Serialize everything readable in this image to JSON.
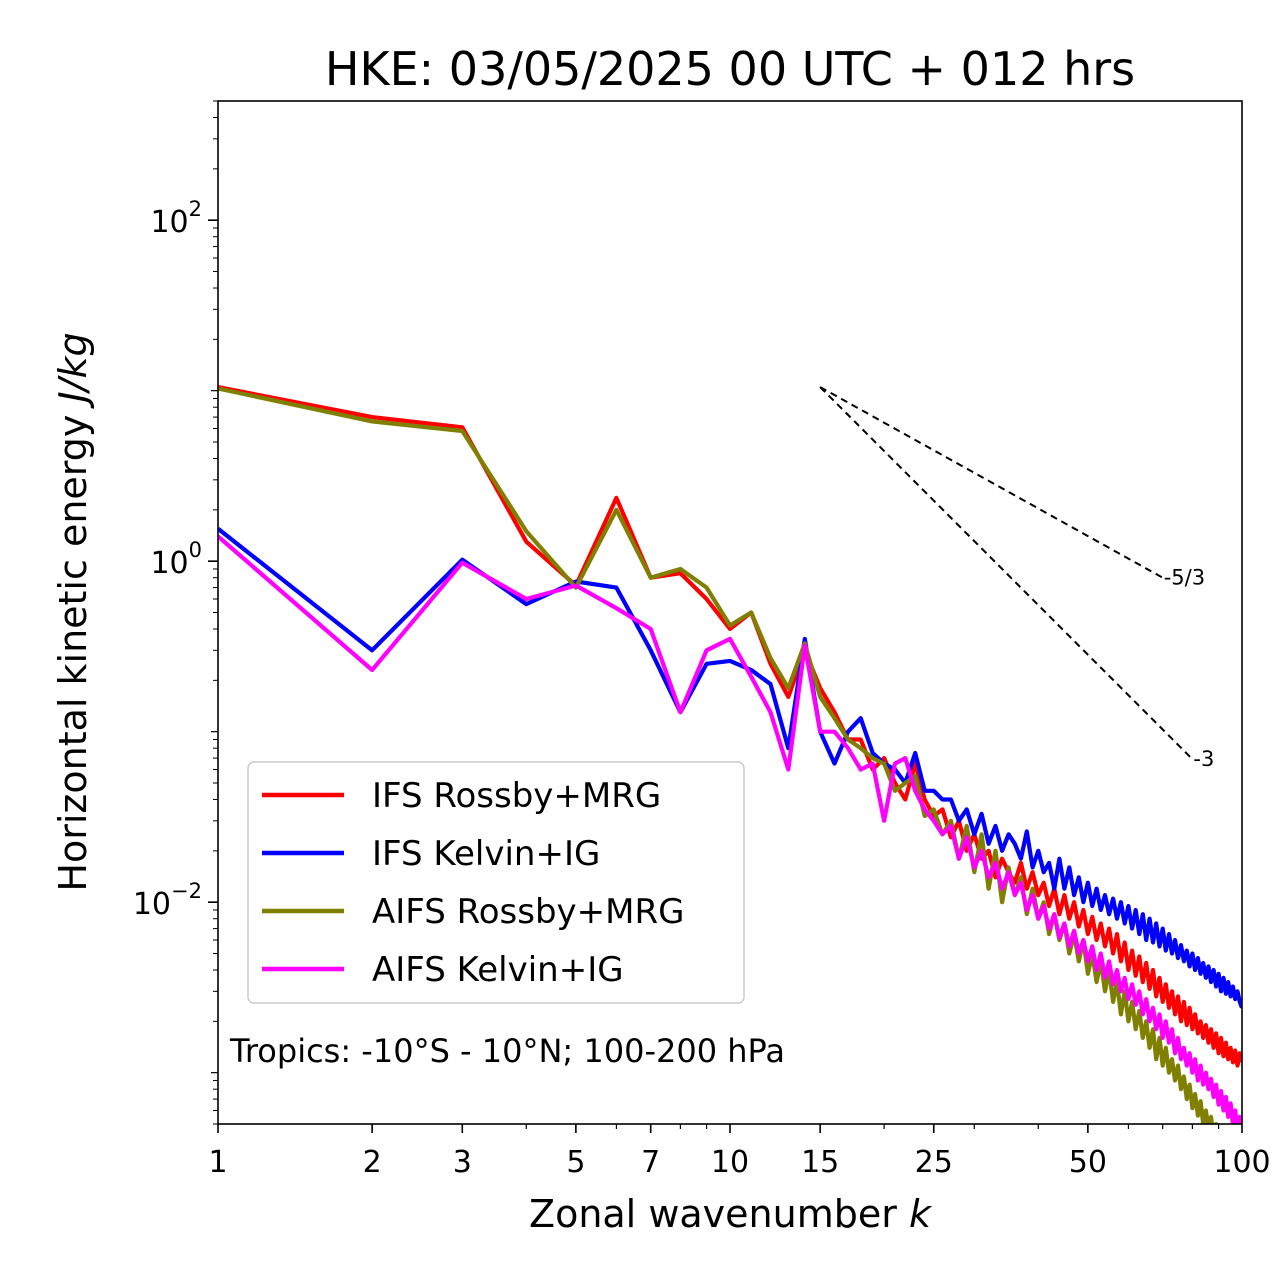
{
  "chart_data": {
    "type": "line",
    "title": "HKE: 03/05/2025 00 UTC + 012 hrs",
    "xlabel": "Zonal wavenumber",
    "xlabel_var": "k",
    "ylabel": "Horizontal kinetic energy",
    "ylabel_unit": "J/kg",
    "xscale": "log",
    "yscale": "log",
    "xlim": [
      1,
      100
    ],
    "ylim": [
      0.0005,
      500
    ],
    "x_ticks": [
      1,
      2,
      3,
      5,
      7,
      10,
      15,
      25,
      50,
      100
    ],
    "x_tick_labels": [
      "1",
      "2",
      "3",
      "5",
      "7",
      "10",
      "15",
      "25",
      "50",
      "100"
    ],
    "y_ticks": [
      0.01,
      1,
      100
    ],
    "y_tick_labels": [
      {
        "base": "10",
        "exp": "−2"
      },
      {
        "base": "10",
        "exp": "0"
      },
      {
        "base": "10",
        "exp": "2"
      }
    ],
    "annotation": "Tropics: -10°S - 10°N; 100-200 hPa",
    "legend_position": "lower-left",
    "reference_lines": [
      {
        "label": "-5/3",
        "slope": -1.6667,
        "x_start": 15,
        "y_start": 10.5,
        "x_end": 70,
        "y_end": 0.8
      },
      {
        "label": "-3",
        "slope": -3,
        "x_start": 15,
        "y_start": 10.5,
        "x_end": 80,
        "y_end": 0.069
      }
    ],
    "series": [
      {
        "name": "IFS Rossby+MRG",
        "color": "#ff0000",
        "x": [
          1,
          2,
          3,
          4,
          5,
          6,
          7,
          8,
          9,
          10,
          11,
          12,
          13,
          14,
          15,
          16,
          17,
          18,
          19,
          20,
          21,
          22,
          23,
          24,
          25,
          26,
          27,
          28,
          29,
          30,
          31,
          32,
          33,
          34,
          35,
          36,
          37,
          38,
          39,
          40,
          41,
          42,
          43,
          44,
          45,
          46,
          47,
          48,
          49,
          50,
          51,
          52,
          53,
          54,
          55,
          56,
          57,
          58,
          59,
          60,
          61,
          62,
          63,
          64,
          65,
          66,
          67,
          68,
          69,
          70,
          71,
          72,
          73,
          74,
          75,
          76,
          77,
          78,
          79,
          80,
          81,
          82,
          83,
          84,
          85,
          86,
          87,
          88,
          89,
          90,
          91,
          92,
          93,
          94,
          95,
          96,
          97,
          98,
          99,
          100
        ],
        "y": [
          10.5,
          7.0,
          6.1,
          1.3,
          0.72,
          2.35,
          0.8,
          0.85,
          0.6,
          0.4,
          0.5,
          0.25,
          0.16,
          0.3,
          0.18,
          0.13,
          0.09,
          0.09,
          0.06,
          0.07,
          0.05,
          0.04,
          0.065,
          0.04,
          0.032,
          0.035,
          0.024,
          0.03,
          0.02,
          0.025,
          0.018,
          0.02,
          0.014,
          0.018,
          0.015,
          0.013,
          0.017,
          0.012,
          0.015,
          0.011,
          0.013,
          0.0095,
          0.012,
          0.0085,
          0.011,
          0.008,
          0.01,
          0.0072,
          0.009,
          0.0065,
          0.0082,
          0.006,
          0.0075,
          0.0055,
          0.007,
          0.005,
          0.0065,
          0.0045,
          0.0058,
          0.004,
          0.0052,
          0.0037,
          0.0048,
          0.0034,
          0.0044,
          0.0031,
          0.004,
          0.0028,
          0.0036,
          0.0026,
          0.0033,
          0.0024,
          0.003,
          0.0022,
          0.0028,
          0.002,
          0.0026,
          0.0019,
          0.0024,
          0.0018,
          0.0022,
          0.0017,
          0.002,
          0.0016,
          0.0019,
          0.0015,
          0.0018,
          0.0014,
          0.0017,
          0.0013,
          0.0016,
          0.00125,
          0.0015,
          0.0012,
          0.0014,
          0.00115,
          0.00135,
          0.0011,
          0.0013,
          0.00115
        ]
      },
      {
        "name": "IFS Kelvin+IG",
        "color": "#0000ff",
        "x": [
          1,
          2,
          3,
          4,
          5,
          6,
          7,
          8,
          9,
          10,
          11,
          12,
          13,
          14,
          15,
          16,
          17,
          18,
          19,
          20,
          21,
          22,
          23,
          24,
          25,
          26,
          27,
          28,
          29,
          30,
          31,
          32,
          33,
          34,
          35,
          36,
          37,
          38,
          39,
          40,
          41,
          42,
          43,
          44,
          45,
          46,
          47,
          48,
          49,
          50,
          51,
          52,
          53,
          54,
          55,
          56,
          57,
          58,
          59,
          60,
          61,
          62,
          63,
          64,
          65,
          66,
          67,
          68,
          69,
          70,
          71,
          72,
          73,
          74,
          75,
          76,
          77,
          78,
          79,
          80,
          81,
          82,
          83,
          84,
          85,
          86,
          87,
          88,
          89,
          90,
          91,
          92,
          93,
          94,
          95,
          96,
          97,
          98,
          99,
          100
        ],
        "y": [
          1.55,
          0.3,
          1.02,
          0.56,
          0.76,
          0.7,
          0.3,
          0.13,
          0.25,
          0.26,
          0.23,
          0.19,
          0.08,
          0.35,
          0.1,
          0.065,
          0.1,
          0.12,
          0.075,
          0.065,
          0.06,
          0.05,
          0.075,
          0.045,
          0.045,
          0.04,
          0.04,
          0.03,
          0.035,
          0.025,
          0.033,
          0.022,
          0.028,
          0.02,
          0.025,
          0.022,
          0.018,
          0.026,
          0.016,
          0.02,
          0.015,
          0.017,
          0.012,
          0.018,
          0.012,
          0.016,
          0.011,
          0.014,
          0.01,
          0.013,
          0.0095,
          0.012,
          0.009,
          0.011,
          0.0085,
          0.0105,
          0.008,
          0.01,
          0.0075,
          0.0095,
          0.007,
          0.009,
          0.0065,
          0.0085,
          0.006,
          0.008,
          0.0058,
          0.0075,
          0.0055,
          0.007,
          0.0052,
          0.0065,
          0.005,
          0.006,
          0.0047,
          0.0056,
          0.0045,
          0.0052,
          0.0042,
          0.005,
          0.004,
          0.0047,
          0.0038,
          0.0044,
          0.0036,
          0.0042,
          0.0034,
          0.004,
          0.0032,
          0.0038,
          0.003,
          0.0036,
          0.0029,
          0.0034,
          0.0028,
          0.0032,
          0.0027,
          0.003,
          0.0026,
          0.0024
        ]
      },
      {
        "name": "AIFS Rossby+MRG",
        "color": "#808000",
        "x": [
          1,
          2,
          3,
          4,
          5,
          6,
          7,
          8,
          9,
          10,
          11,
          12,
          13,
          14,
          15,
          16,
          17,
          18,
          19,
          20,
          21,
          22,
          23,
          24,
          25,
          26,
          27,
          28,
          29,
          30,
          31,
          32,
          33,
          34,
          35,
          36,
          37,
          38,
          39,
          40,
          41,
          42,
          43,
          44,
          45,
          46,
          47,
          48,
          49,
          50,
          51,
          52,
          53,
          54,
          55,
          56,
          57,
          58,
          59,
          60,
          61,
          62,
          63,
          64,
          65,
          66,
          67,
          68,
          69,
          70,
          71,
          72,
          73,
          74,
          75,
          76,
          77,
          78,
          79,
          80,
          81,
          82,
          83,
          84,
          85,
          86,
          87,
          88,
          89,
          90,
          91,
          92,
          93,
          94,
          95,
          96,
          97,
          98,
          99,
          100
        ],
        "y": [
          10.3,
          6.6,
          5.8,
          1.5,
          0.7,
          2.0,
          0.8,
          0.9,
          0.7,
          0.42,
          0.5,
          0.27,
          0.18,
          0.33,
          0.16,
          0.12,
          0.09,
          0.08,
          0.07,
          0.065,
          0.045,
          0.05,
          0.055,
          0.032,
          0.035,
          0.025,
          0.03,
          0.018,
          0.028,
          0.015,
          0.025,
          0.012,
          0.02,
          0.01,
          0.016,
          0.011,
          0.014,
          0.0085,
          0.012,
          0.008,
          0.01,
          0.0065,
          0.0085,
          0.006,
          0.0075,
          0.005,
          0.0065,
          0.0045,
          0.006,
          0.0038,
          0.005,
          0.0034,
          0.0045,
          0.003,
          0.004,
          0.0026,
          0.0034,
          0.0022,
          0.003,
          0.002,
          0.0026,
          0.0018,
          0.0023,
          0.0016,
          0.002,
          0.0014,
          0.0018,
          0.0012,
          0.0016,
          0.0011,
          0.0014,
          0.001,
          0.0012,
          0.0009,
          0.0011,
          0.0008,
          0.00095,
          0.0007,
          0.00085,
          0.00062,
          0.00075,
          0.00056,
          0.00068,
          0.0005,
          0.0006,
          0.00046,
          0.00055,
          0.00042,
          0.0005,
          0.00038,
          0.00046,
          0.00035,
          0.00042,
          0.00032,
          0.00038,
          0.0003,
          0.00035,
          0.00028,
          0.00032,
          0.00026
        ]
      },
      {
        "name": "AIFS Kelvin+IG",
        "color": "#ff00ff",
        "x": [
          1,
          2,
          3,
          4,
          5,
          6,
          7,
          8,
          9,
          10,
          11,
          12,
          13,
          14,
          15,
          16,
          17,
          18,
          19,
          20,
          21,
          22,
          23,
          24,
          25,
          26,
          27,
          28,
          29,
          30,
          31,
          32,
          33,
          34,
          35,
          36,
          37,
          38,
          39,
          40,
          41,
          42,
          43,
          44,
          45,
          46,
          47,
          48,
          49,
          50,
          51,
          52,
          53,
          54,
          55,
          56,
          57,
          58,
          59,
          60,
          61,
          62,
          63,
          64,
          65,
          66,
          67,
          68,
          69,
          70,
          71,
          72,
          73,
          74,
          75,
          76,
          77,
          78,
          79,
          80,
          81,
          82,
          83,
          84,
          85,
          86,
          87,
          88,
          89,
          90,
          91,
          92,
          93,
          94,
          95,
          96,
          97,
          98,
          99,
          100
        ],
        "y": [
          1.4,
          0.23,
          0.98,
          0.6,
          0.72,
          0.53,
          0.4,
          0.13,
          0.3,
          0.35,
          0.21,
          0.13,
          0.06,
          0.32,
          0.1,
          0.1,
          0.08,
          0.06,
          0.065,
          0.03,
          0.065,
          0.07,
          0.045,
          0.035,
          0.03,
          0.025,
          0.028,
          0.018,
          0.024,
          0.016,
          0.02,
          0.014,
          0.017,
          0.012,
          0.015,
          0.011,
          0.013,
          0.009,
          0.011,
          0.008,
          0.0095,
          0.007,
          0.0085,
          0.0062,
          0.0075,
          0.0055,
          0.0068,
          0.005,
          0.006,
          0.0045,
          0.0055,
          0.004,
          0.005,
          0.0036,
          0.0045,
          0.0033,
          0.004,
          0.003,
          0.0036,
          0.0027,
          0.0033,
          0.0025,
          0.003,
          0.0022,
          0.0027,
          0.002,
          0.0024,
          0.0018,
          0.0022,
          0.0016,
          0.002,
          0.0015,
          0.0018,
          0.0013,
          0.0016,
          0.0012,
          0.0014,
          0.0011,
          0.0013,
          0.001,
          0.0012,
          0.0009,
          0.0011,
          0.00085,
          0.001,
          0.0008,
          0.00092,
          0.00072,
          0.00085,
          0.00065,
          0.00078,
          0.0006,
          0.00072,
          0.00055,
          0.00066,
          0.0005,
          0.0006,
          0.00046,
          0.00055,
          0.00042
        ]
      }
    ]
  }
}
